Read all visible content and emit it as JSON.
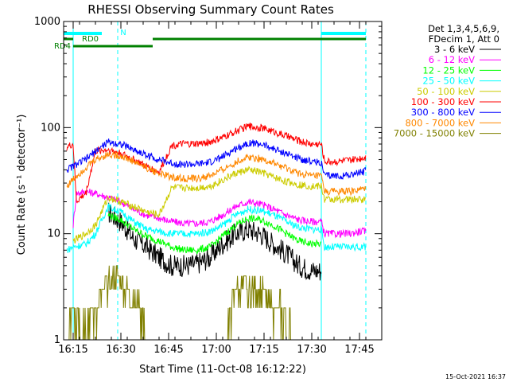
{
  "chart_data": {
    "type": "line",
    "title": "RHESSI Observing Summary Count Rates",
    "xlabel": "Start Time (11-Oct-08 16:12:22)",
    "ylabel": "Count Rate (s⁻¹ detector⁻¹)",
    "y_scale": "log",
    "ylim": [
      1,
      1000
    ],
    "xlim": [
      "16:12",
      "17:52"
    ],
    "x_ticks": [
      "16:15",
      "16:30",
      "16:45",
      "17:00",
      "17:15",
      "17:30",
      "17:45"
    ],
    "y_ticks": [
      "1",
      "10",
      "100",
      "1000"
    ],
    "grid": false,
    "legend": {
      "placement": "right",
      "header": [
        "Det 1,3,4,5,6,9,",
        "FDecim 1, Att 0"
      ]
    },
    "annotations": {
      "night_bar_label": "N",
      "rd0_label": "RD0",
      "rd4_label": "RD4"
    },
    "timestamp": "15-Oct-2021 16:37",
    "series": [
      {
        "name": "3 - 6 keV",
        "color": "#000000",
        "x": [
          "16:26",
          "16:30",
          "16:34",
          "16:38",
          "16:42",
          "16:46",
          "16:50",
          "16:54",
          "16:58",
          "17:02",
          "17:06",
          "17:10",
          "17:14",
          "17:18",
          "17:22",
          "17:26",
          "17:30",
          "17:33"
        ],
        "values": [
          16,
          13,
          9,
          7.5,
          6,
          5,
          5,
          5.2,
          6,
          8,
          10,
          11,
          10,
          8,
          6.5,
          5,
          4.5,
          4.5
        ]
      },
      {
        "name": "6 - 12 keV",
        "color": "#ff00ff",
        "x": [
          "16:15",
          "16:16",
          "16:19",
          "16:22",
          "16:24",
          "16:26",
          "16:30",
          "16:34",
          "16:38",
          "16:42",
          "16:46",
          "16:50",
          "16:54",
          "16:58",
          "17:02",
          "17:06",
          "17:10",
          "17:14",
          "17:18",
          "17:22",
          "17:26",
          "17:30",
          "17:33",
          "17:34",
          "17:38",
          "17:42",
          "17:45",
          "17:47"
        ],
        "values": [
          12,
          24,
          25,
          24,
          23,
          22,
          20,
          17,
          15,
          14,
          13,
          12.5,
          12.5,
          13,
          15,
          18,
          20,
          19,
          17,
          15,
          13.5,
          13,
          13,
          10,
          10,
          10,
          10.5,
          10.5
        ]
      },
      {
        "name": "12 - 25 keV",
        "color": "#00ff00",
        "x": [
          "16:26",
          "16:30",
          "16:34",
          "16:38",
          "16:42",
          "16:46",
          "16:50",
          "16:54",
          "16:58",
          "17:02",
          "17:06",
          "17:10",
          "17:14",
          "17:18",
          "17:22",
          "17:26",
          "17:30",
          "17:33"
        ],
        "values": [
          15,
          13.5,
          11,
          9.5,
          8.5,
          7.5,
          7,
          7,
          7.5,
          9.5,
          12,
          14,
          13.5,
          12,
          10,
          8.5,
          8,
          8
        ]
      },
      {
        "name": "25 - 50 keV",
        "color": "#00ffff",
        "x": [
          "16:13",
          "16:15",
          "16:19",
          "16:22",
          "16:26",
          "16:30",
          "16:34",
          "16:38",
          "16:42",
          "16:46",
          "16:50",
          "16:54",
          "16:58",
          "17:02",
          "17:06",
          "17:10",
          "17:14",
          "17:18",
          "17:22",
          "17:26",
          "17:30",
          "17:33",
          "17:34",
          "17:38",
          "17:42",
          "17:46",
          "17:47"
        ],
        "values": [
          7,
          7.5,
          8,
          10,
          18,
          16,
          13,
          11,
          10.5,
          10,
          10,
          10,
          10.5,
          12,
          15,
          17,
          16.5,
          15,
          13,
          11.5,
          11,
          11,
          7.5,
          7.5,
          7.5,
          7.5,
          7.5
        ]
      },
      {
        "name": "50 - 100 keV",
        "color": "#cccc00",
        "x": [
          "16:15",
          "16:19",
          "16:22",
          "16:26",
          "16:30",
          "16:34",
          "16:38",
          "16:42",
          "16:46",
          "16:50",
          "16:54",
          "16:58",
          "17:02",
          "17:06",
          "17:10",
          "17:14",
          "17:18",
          "17:22",
          "17:26",
          "17:30",
          "17:33",
          "17:34",
          "17:38",
          "17:42",
          "17:46",
          "17:47"
        ],
        "values": [
          8.5,
          10,
          12,
          22,
          20,
          18,
          16,
          15,
          27,
          27,
          27,
          28,
          32,
          37,
          40,
          38,
          34,
          31,
          29,
          28,
          28,
          21,
          21,
          21,
          21,
          21
        ]
      },
      {
        "name": "100 - 300 keV",
        "color": "#ff0000",
        "x": [
          "16:13",
          "16:15",
          "16:16",
          "16:19",
          "16:22",
          "16:26",
          "16:30",
          "16:34",
          "16:38",
          "16:42",
          "16:46",
          "16:50",
          "16:54",
          "16:58",
          "17:02",
          "17:06",
          "17:10",
          "17:14",
          "17:18",
          "17:22",
          "17:26",
          "17:30",
          "17:33",
          "17:34",
          "17:38",
          "17:42",
          "17:46",
          "17:47"
        ],
        "values": [
          65,
          70,
          20,
          24,
          60,
          62,
          57,
          50,
          43,
          38,
          68,
          70,
          70,
          73,
          80,
          92,
          103,
          100,
          92,
          83,
          75,
          70,
          70,
          48,
          48,
          49,
          52,
          53
        ]
      },
      {
        "name": "300 - 800 keV",
        "color": "#0000ff",
        "x": [
          "16:13",
          "16:16",
          "16:19",
          "16:22",
          "16:26",
          "16:30",
          "16:34",
          "16:38",
          "16:42",
          "16:46",
          "16:50",
          "16:54",
          "16:58",
          "17:02",
          "17:06",
          "17:10",
          "17:14",
          "17:18",
          "17:22",
          "17:26",
          "17:30",
          "17:33",
          "17:34",
          "17:38",
          "17:42",
          "17:46",
          "17:47"
        ],
        "values": [
          40,
          45,
          50,
          60,
          73,
          70,
          62,
          55,
          50,
          46,
          45,
          45,
          47,
          53,
          63,
          72,
          70,
          63,
          57,
          51,
          48,
          47,
          35,
          35,
          36,
          38,
          39
        ]
      },
      {
        "name": "800 - 7000 keV",
        "color": "#ff8800",
        "x": [
          "16:13",
          "16:16",
          "16:19",
          "16:22",
          "16:26",
          "16:30",
          "16:34",
          "16:38",
          "16:42",
          "16:46",
          "16:50",
          "16:54",
          "16:58",
          "17:02",
          "17:06",
          "17:10",
          "17:14",
          "17:18",
          "17:22",
          "17:26",
          "17:30",
          "17:33",
          "17:34",
          "17:38",
          "17:42",
          "17:46",
          "17:47"
        ],
        "values": [
          28,
          35,
          42,
          50,
          56,
          54,
          48,
          42,
          37,
          34,
          33,
          33,
          35,
          40,
          47,
          53,
          51,
          46,
          41,
          37,
          35,
          35,
          25,
          25,
          25,
          26,
          26
        ]
      },
      {
        "name": "7000 - 15000 keV",
        "color": "#808000",
        "x": [
          "16:13",
          "16:15",
          "16:18",
          "16:21",
          "16:24",
          "16:26",
          "16:28",
          "16:30",
          "16:32",
          "16:34",
          "16:36",
          "16:38",
          "16:40",
          "16:42",
          "16:44",
          "16:46",
          "16:48",
          "16:50",
          "16:52",
          "16:54",
          "16:58",
          "17:02",
          "17:04",
          "17:06",
          "17:08",
          "17:10",
          "17:12",
          "17:14",
          "17:16",
          "17:18",
          "17:20",
          "17:22",
          "17:25"
        ],
        "values": [
          1,
          2,
          1.5,
          1.6,
          2.5,
          3.5,
          4,
          3.5,
          3,
          2.5,
          2,
          1.2,
          1,
          1,
          1,
          1,
          1,
          1,
          1,
          1,
          1,
          1,
          1.5,
          3,
          3,
          3,
          3,
          3,
          2.5,
          2,
          2,
          1.5,
          1
        ]
      }
    ]
  }
}
